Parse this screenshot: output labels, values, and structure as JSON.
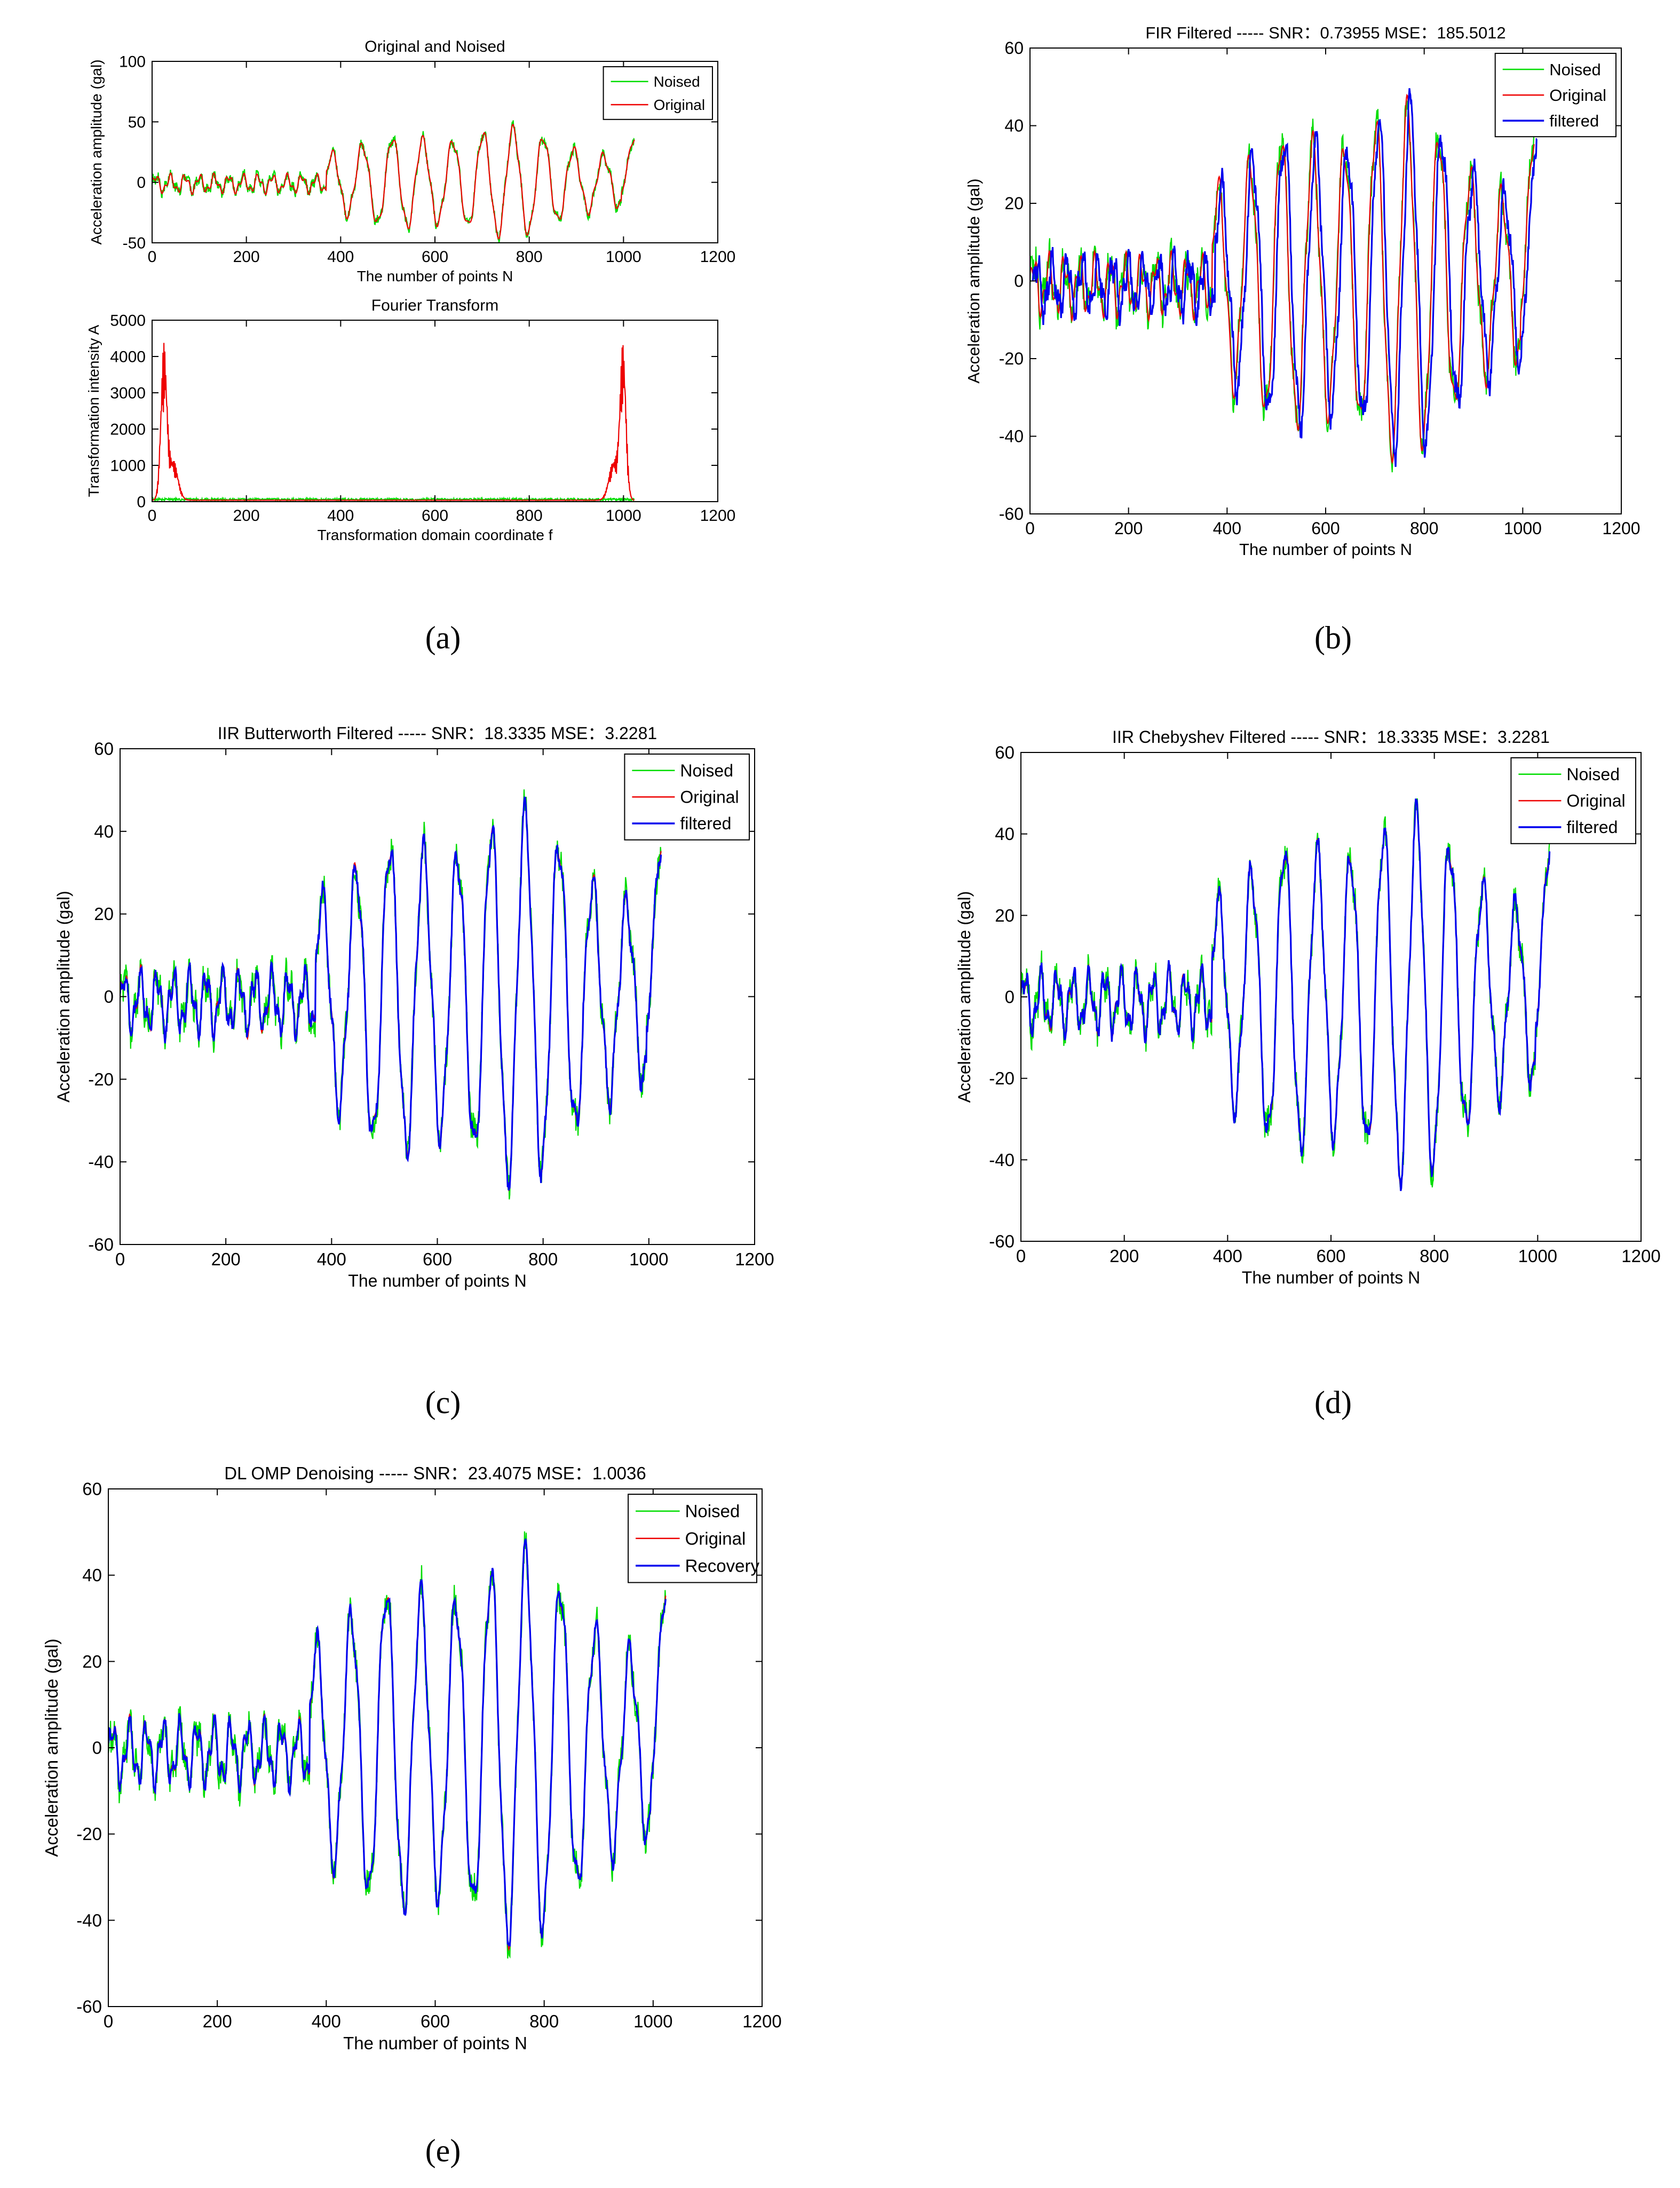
{
  "colors": {
    "noised": "#00dd00",
    "original": "#ee0000",
    "filtered": "#0000ee",
    "axis": "#000000"
  },
  "subfigure_labels": [
    "(a)",
    "(b)",
    "(c)",
    "(d)",
    "(e)"
  ],
  "chart_data": [
    {
      "id": "a1",
      "type": "line",
      "title": "Original and Noised",
      "xlabel": "The number of points N",
      "ylabel": "Acceleration amplitude (gal)",
      "xlim": [
        0,
        1200
      ],
      "ylim": [
        -50,
        100
      ],
      "xticks": [
        0,
        200,
        400,
        600,
        800,
        1000,
        1200
      ],
      "yticks": [
        -50,
        0,
        50,
        100
      ],
      "legend": {
        "position": "top-right",
        "entries": [
          "Noised",
          "Original"
        ]
      },
      "series": [
        {
          "name": "Noised",
          "color_key": "noised",
          "signal": "seismic",
          "noise": 4
        },
        {
          "name": "Original",
          "color_key": "original",
          "signal": "seismic",
          "noise": 0
        }
      ]
    },
    {
      "id": "a2",
      "type": "line",
      "title": "Fourier Transform",
      "xlabel": "Transformation domain coordinate f",
      "ylabel": "Transformation intensity A",
      "xlim": [
        0,
        1200
      ],
      "ylim": [
        0,
        5000
      ],
      "xticks": [
        0,
        200,
        400,
        600,
        800,
        1000,
        1200
      ],
      "yticks": [
        0,
        1000,
        2000,
        3000,
        4000,
        5000
      ],
      "legend": null,
      "series": [
        {
          "name": "Noised",
          "color_key": "noised",
          "signal": "spectrum",
          "noise": 60
        },
        {
          "name": "Original",
          "color_key": "original",
          "signal": "spectrum",
          "noise": 0
        }
      ]
    },
    {
      "id": "b",
      "type": "line",
      "title": "FIR Filtered   -----  SNR：0.73955    MSE：185.5012",
      "xlabel": "The number of points N",
      "ylabel": "Acceleration amplitude (gal)",
      "xlim": [
        0,
        1200
      ],
      "ylim": [
        -60,
        60
      ],
      "xticks": [
        0,
        200,
        400,
        600,
        800,
        1000,
        1200
      ],
      "yticks": [
        -60,
        -40,
        -20,
        0,
        20,
        40,
        60
      ],
      "legend": {
        "position": "top-right",
        "entries": [
          "Noised",
          "Original",
          "filtered"
        ]
      },
      "series": [
        {
          "name": "Noised",
          "color_key": "noised",
          "signal": "seismic",
          "noise": 4
        },
        {
          "name": "Original",
          "color_key": "original",
          "signal": "seismic",
          "noise": 0
        },
        {
          "name": "filtered",
          "color_key": "filtered",
          "signal": "seismic",
          "noise": 2.5,
          "shift": 6
        }
      ]
    },
    {
      "id": "c",
      "type": "line",
      "title": "IIR Butterworth Filtered   -----  SNR：18.3335    MSE：3.2281",
      "xlabel": "The number of points N",
      "ylabel": "Acceleration amplitude (gal)",
      "xlim": [
        0,
        1200
      ],
      "ylim": [
        -60,
        60
      ],
      "xticks": [
        0,
        200,
        400,
        600,
        800,
        1000,
        1200
      ],
      "yticks": [
        -60,
        -40,
        -20,
        0,
        20,
        40,
        60
      ],
      "legend": {
        "position": "top-right",
        "entries": [
          "Noised",
          "Original",
          "filtered"
        ]
      },
      "series": [
        {
          "name": "Noised",
          "color_key": "noised",
          "signal": "seismic",
          "noise": 4
        },
        {
          "name": "Original",
          "color_key": "original",
          "signal": "seismic",
          "noise": 0
        },
        {
          "name": "filtered",
          "color_key": "filtered",
          "signal": "seismic",
          "noise": 1.5
        }
      ]
    },
    {
      "id": "d",
      "type": "line",
      "title": "IIR Chebyshev Filtered   -----  SNR：18.3335    MSE：3.2281",
      "xlabel": "The number of points N",
      "ylabel": "Acceleration amplitude (gal)",
      "xlim": [
        0,
        1200
      ],
      "ylim": [
        -60,
        60
      ],
      "xticks": [
        0,
        200,
        400,
        600,
        800,
        1000,
        1200
      ],
      "yticks": [
        -60,
        -40,
        -20,
        0,
        20,
        40,
        60
      ],
      "legend": {
        "position": "top-right",
        "entries": [
          "Noised",
          "Original",
          "filtered"
        ]
      },
      "series": [
        {
          "name": "Noised",
          "color_key": "noised",
          "signal": "seismic",
          "noise": 4
        },
        {
          "name": "Original",
          "color_key": "original",
          "signal": "seismic",
          "noise": 0
        },
        {
          "name": "filtered",
          "color_key": "filtered",
          "signal": "seismic",
          "noise": 1.5
        }
      ]
    },
    {
      "id": "e",
      "type": "line",
      "title": "DL OMP Denoising   -----  SNR：23.4075    MSE：1.0036",
      "xlabel": "The number of points N",
      "ylabel": "Acceleration amplitude (gal)",
      "xlim": [
        0,
        1200
      ],
      "ylim": [
        -60,
        60
      ],
      "xticks": [
        0,
        200,
        400,
        600,
        800,
        1000,
        1200
      ],
      "yticks": [
        -60,
        -40,
        -20,
        0,
        20,
        40,
        60
      ],
      "legend": {
        "position": "top-right",
        "entries": [
          "Noised",
          "Original",
          "Recovery"
        ]
      },
      "series": [
        {
          "name": "Noised",
          "color_key": "noised",
          "signal": "seismic",
          "noise": 4
        },
        {
          "name": "Original",
          "color_key": "original",
          "signal": "seismic",
          "noise": 0
        },
        {
          "name": "Recovery",
          "color_key": "filtered",
          "signal": "seismic",
          "noise": 1
        }
      ]
    }
  ]
}
